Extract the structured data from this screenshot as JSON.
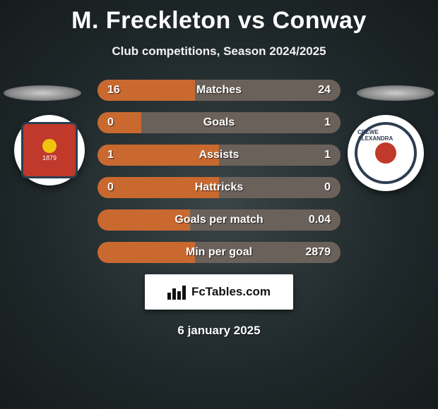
{
  "title": "M. Freckleton vs Conway",
  "subtitle": "Club competitions, Season 2024/2025",
  "date": "6 january 2025",
  "branding_text": "FcTables.com",
  "colors": {
    "left_fill": "#c9692f",
    "right_fill": "#6b615b",
    "row_base": "#6b615b",
    "title_color": "#ffffff"
  },
  "teams": {
    "left": {
      "name": "Swindon Town",
      "crest_year": "1879"
    },
    "right": {
      "name": "Crewe Alexandra",
      "crest_text": "CREWE ALEXANDRA"
    }
  },
  "stats": [
    {
      "label": "Matches",
      "left_value": "16",
      "right_value": "24",
      "left_pct": 40,
      "right_pct": 60
    },
    {
      "label": "Goals",
      "left_value": "0",
      "right_value": "1",
      "left_pct": 18,
      "right_pct": 82
    },
    {
      "label": "Assists",
      "left_value": "1",
      "right_value": "1",
      "left_pct": 50,
      "right_pct": 50
    },
    {
      "label": "Hattricks",
      "left_value": "0",
      "right_value": "0",
      "left_pct": 50,
      "right_pct": 50
    },
    {
      "label": "Goals per match",
      "left_value": "",
      "right_value": "0.04",
      "left_pct": 38,
      "right_pct": 62
    },
    {
      "label": "Min per goal",
      "left_value": "",
      "right_value": "2879",
      "left_pct": 40,
      "right_pct": 60
    }
  ]
}
